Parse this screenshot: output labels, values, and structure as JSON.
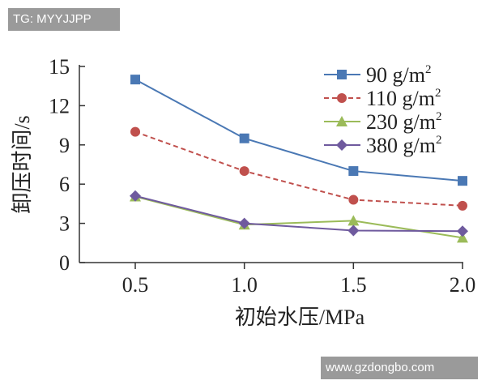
{
  "watermarks": {
    "top_left": "TG: MYYJJPP",
    "bottom_right": "www.gzdongbo.com"
  },
  "chart_data": {
    "type": "line",
    "title": "",
    "xlabel": "初始水压/MPa",
    "ylabel": "卸压时间/s",
    "x": [
      0.5,
      1.0,
      1.5,
      2.0
    ],
    "x_tick_labels": [
      "0.5",
      "1.0",
      "1.5",
      "2.0"
    ],
    "xlim": [
      0.5,
      2.0
    ],
    "ylim": [
      0,
      15
    ],
    "y_ticks": [
      0,
      3,
      6,
      9,
      12,
      15
    ],
    "y_tick_labels": [
      "0",
      "3",
      "6",
      "9",
      "12",
      "15"
    ],
    "grid": false,
    "legend_position": "top-right",
    "series": [
      {
        "name": "90 g/m2",
        "label_base": "90 g/m",
        "label_sup": "2",
        "values": [
          14.0,
          9.5,
          7.0,
          6.25
        ],
        "color": "#4a78b4",
        "marker": "square",
        "dash": false
      },
      {
        "name": "110 g/m2",
        "label_base": "110 g/m",
        "label_sup": "2",
        "values": [
          10.0,
          7.0,
          4.8,
          4.35
        ],
        "color": "#c0504d",
        "marker": "circle",
        "dash": true
      },
      {
        "name": "230 g/m2",
        "label_base": "230 g/m",
        "label_sup": "2",
        "values": [
          5.05,
          2.9,
          3.2,
          1.9
        ],
        "color": "#9bbb59",
        "marker": "triangle",
        "dash": false
      },
      {
        "name": "380 g/m2",
        "label_base": "380 g/m",
        "label_sup": "2",
        "values": [
          5.1,
          3.0,
          2.45,
          2.4
        ],
        "color": "#6f5a9e",
        "marker": "diamond",
        "dash": false
      }
    ]
  }
}
